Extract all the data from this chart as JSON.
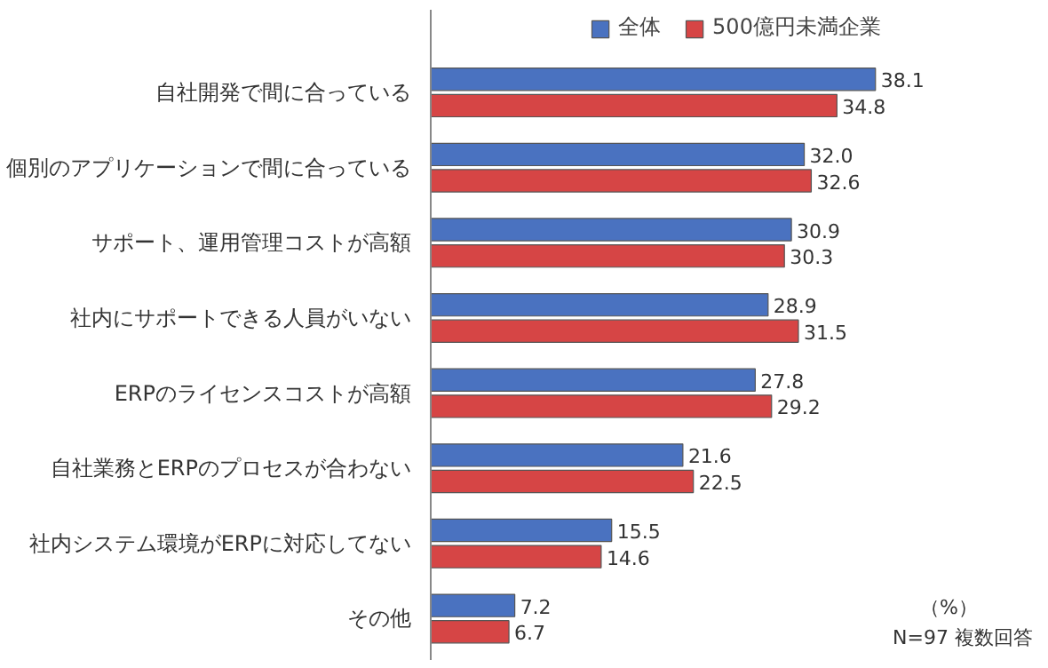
{
  "chart_data": {
    "type": "bar",
    "orientation": "horizontal",
    "categories": [
      "自社開発で間に合っている",
      "個別のアプリケーションで間に合っている",
      "サポート、運用管理コストが高額",
      "社内にサポートできる人員がいない",
      "ERPのライセンスコストが高額",
      "自社業務とERPのプロセスが合わない",
      "社内システム環境がERPに対応してない",
      "その他"
    ],
    "series": [
      {
        "name": "全体",
        "color": "#4a72c0",
        "values": [
          38.1,
          32.0,
          30.9,
          28.9,
          27.8,
          21.6,
          15.5,
          7.2
        ],
        "value_labels": [
          "38.1",
          "32.0",
          "30.9",
          "28.9",
          "27.8",
          "21.6",
          "15.5",
          "7.2"
        ]
      },
      {
        "name": "500億円未満企業",
        "color": "#d64545",
        "values": [
          34.8,
          32.6,
          30.3,
          31.5,
          29.2,
          22.5,
          14.6,
          6.7
        ],
        "value_labels": [
          "34.8",
          "32.6",
          "30.3",
          "31.5",
          "29.2",
          "22.5",
          "14.6",
          "6.7"
        ]
      }
    ],
    "data_labels": true,
    "legend": "top",
    "grid": false,
    "annotations": [
      "（%）",
      "N=97 複数回答"
    ]
  }
}
